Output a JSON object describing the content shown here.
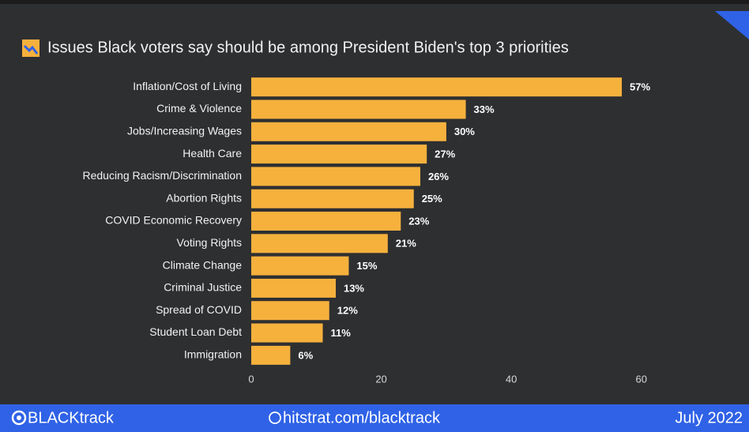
{
  "chart_data": {
    "type": "hbar",
    "title": "Issues Black voters say should be among President Biden's top 3 priorities",
    "categories": [
      "Inflation/Cost of Living",
      "Crime & Violence",
      "Jobs/Increasing Wages",
      "Health Care",
      "Reducing Racism/Discrimination",
      "Abortion Rights",
      "COVID Economic Recovery",
      "Voting Rights",
      "Climate Change",
      "Criminal Justice",
      "Spread of COVID",
      "Student Loan Debt",
      "Immigration"
    ],
    "values": [
      57,
      33,
      30,
      27,
      26,
      25,
      23,
      21,
      15,
      13,
      12,
      11,
      6
    ],
    "value_labels": [
      "57%",
      "33%",
      "30%",
      "27%",
      "26%",
      "25%",
      "23%",
      "21%",
      "15%",
      "13%",
      "12%",
      "11%",
      "6%"
    ],
    "color": "#f6b13d",
    "xlim": [
      0,
      70
    ],
    "xticks": [
      0,
      20,
      40,
      60
    ],
    "grid": false
  },
  "footer": {
    "brand": "BLACKtrack",
    "website": "hitstrat.com/blacktrack",
    "date": "July 2022"
  }
}
